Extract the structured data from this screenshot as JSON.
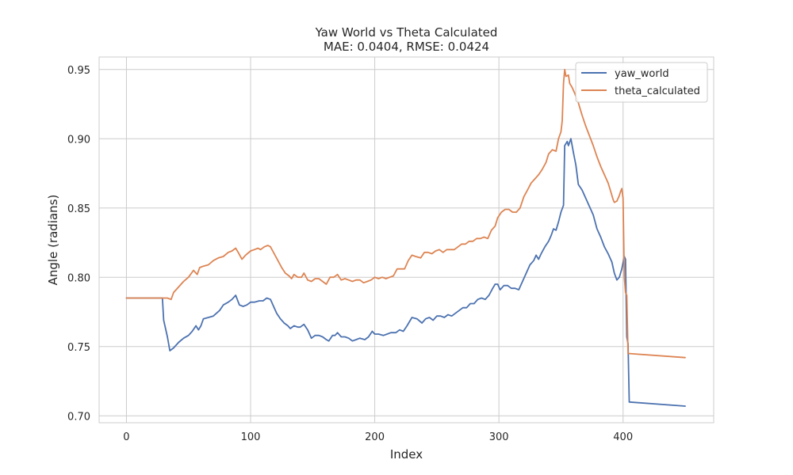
{
  "chart_data": {
    "type": "line",
    "title": "Yaw World vs Theta Calculated",
    "subtitle": "MAE: 0.0404, RMSE: 0.0424",
    "xlabel": "Index",
    "ylabel": "Angle (radians)",
    "xlim": [
      -22,
      473
    ],
    "ylim": [
      0.695,
      0.959
    ],
    "xticks": [
      0,
      100,
      200,
      300,
      400
    ],
    "yticks": [
      0.7,
      0.75,
      0.8,
      0.85,
      0.9,
      0.95
    ],
    "xtick_labels": [
      "0",
      "100",
      "200",
      "300",
      "400"
    ],
    "ytick_labels": [
      "0.70",
      "0.75",
      "0.80",
      "0.85",
      "0.90",
      "0.95"
    ],
    "grid": true,
    "legend_position": "top-right",
    "series": [
      {
        "name": "yaw_world",
        "color": "#4c72b0",
        "points": [
          [
            0,
            0.785
          ],
          [
            10,
            0.785
          ],
          [
            20,
            0.785
          ],
          [
            29,
            0.785
          ],
          [
            30,
            0.769
          ],
          [
            33,
            0.757
          ],
          [
            35,
            0.747
          ],
          [
            38,
            0.749
          ],
          [
            42,
            0.753
          ],
          [
            46,
            0.756
          ],
          [
            50,
            0.758
          ],
          [
            53,
            0.761
          ],
          [
            56,
            0.765
          ],
          [
            58,
            0.762
          ],
          [
            60,
            0.765
          ],
          [
            62,
            0.77
          ],
          [
            66,
            0.771
          ],
          [
            70,
            0.772
          ],
          [
            75,
            0.776
          ],
          [
            78,
            0.78
          ],
          [
            82,
            0.782
          ],
          [
            85,
            0.784
          ],
          [
            88,
            0.787
          ],
          [
            91,
            0.78
          ],
          [
            94,
            0.779
          ],
          [
            97,
            0.78
          ],
          [
            100,
            0.782
          ],
          [
            103,
            0.782
          ],
          [
            107,
            0.783
          ],
          [
            110,
            0.783
          ],
          [
            113,
            0.785
          ],
          [
            116,
            0.784
          ],
          [
            118,
            0.78
          ],
          [
            121,
            0.774
          ],
          [
            124,
            0.77
          ],
          [
            127,
            0.767
          ],
          [
            130,
            0.765
          ],
          [
            132,
            0.763
          ],
          [
            135,
            0.765
          ],
          [
            138,
            0.764
          ],
          [
            140,
            0.764
          ],
          [
            143,
            0.766
          ],
          [
            146,
            0.762
          ],
          [
            149,
            0.756
          ],
          [
            152,
            0.758
          ],
          [
            155,
            0.758
          ],
          [
            158,
            0.757
          ],
          [
            161,
            0.755
          ],
          [
            163,
            0.754
          ],
          [
            166,
            0.758
          ],
          [
            168,
            0.758
          ],
          [
            170,
            0.76
          ],
          [
            173,
            0.757
          ],
          [
            176,
            0.757
          ],
          [
            179,
            0.756
          ],
          [
            182,
            0.754
          ],
          [
            185,
            0.755
          ],
          [
            188,
            0.756
          ],
          [
            192,
            0.755
          ],
          [
            195,
            0.757
          ],
          [
            198,
            0.761
          ],
          [
            200,
            0.759
          ],
          [
            203,
            0.759
          ],
          [
            207,
            0.758
          ],
          [
            210,
            0.759
          ],
          [
            213,
            0.76
          ],
          [
            217,
            0.76
          ],
          [
            220,
            0.762
          ],
          [
            223,
            0.761
          ],
          [
            226,
            0.765
          ],
          [
            230,
            0.771
          ],
          [
            234,
            0.77
          ],
          [
            238,
            0.767
          ],
          [
            241,
            0.77
          ],
          [
            244,
            0.771
          ],
          [
            247,
            0.769
          ],
          [
            250,
            0.772
          ],
          [
            253,
            0.772
          ],
          [
            256,
            0.771
          ],
          [
            259,
            0.773
          ],
          [
            262,
            0.772
          ],
          [
            265,
            0.774
          ],
          [
            268,
            0.776
          ],
          [
            271,
            0.778
          ],
          [
            274,
            0.778
          ],
          [
            277,
            0.781
          ],
          [
            280,
            0.781
          ],
          [
            283,
            0.784
          ],
          [
            286,
            0.785
          ],
          [
            289,
            0.784
          ],
          [
            292,
            0.787
          ],
          [
            295,
            0.792
          ],
          [
            297,
            0.795
          ],
          [
            299,
            0.795
          ],
          [
            301,
            0.791
          ],
          [
            304,
            0.794
          ],
          [
            307,
            0.794
          ],
          [
            310,
            0.792
          ],
          [
            313,
            0.792
          ],
          [
            316,
            0.791
          ],
          [
            319,
            0.797
          ],
          [
            322,
            0.803
          ],
          [
            325,
            0.809
          ],
          [
            328,
            0.812
          ],
          [
            330,
            0.816
          ],
          [
            332,
            0.813
          ],
          [
            334,
            0.817
          ],
          [
            337,
            0.822
          ],
          [
            340,
            0.826
          ],
          [
            342,
            0.83
          ],
          [
            344,
            0.835
          ],
          [
            346,
            0.834
          ],
          [
            348,
            0.84
          ],
          [
            350,
            0.847
          ],
          [
            352,
            0.852
          ],
          [
            353,
            0.895
          ],
          [
            355,
            0.898
          ],
          [
            356,
            0.895
          ],
          [
            358,
            0.9
          ],
          [
            360,
            0.89
          ],
          [
            362,
            0.881
          ],
          [
            364,
            0.867
          ],
          [
            367,
            0.863
          ],
          [
            370,
            0.857
          ],
          [
            373,
            0.851
          ],
          [
            376,
            0.845
          ],
          [
            379,
            0.835
          ],
          [
            382,
            0.829
          ],
          [
            385,
            0.822
          ],
          [
            388,
            0.817
          ],
          [
            391,
            0.811
          ],
          [
            393,
            0.803
          ],
          [
            395,
            0.798
          ],
          [
            397,
            0.8
          ],
          [
            399,
            0.806
          ],
          [
            401,
            0.815
          ],
          [
            402,
            0.813
          ],
          [
            403,
            0.757
          ],
          [
            404,
            0.752
          ],
          [
            405,
            0.71
          ],
          [
            450,
            0.707
          ]
        ]
      },
      {
        "name": "theta_calculated",
        "color": "#dd8452",
        "points": [
          [
            0,
            0.785
          ],
          [
            10,
            0.785
          ],
          [
            20,
            0.785
          ],
          [
            30,
            0.785
          ],
          [
            33,
            0.785
          ],
          [
            36,
            0.784
          ],
          [
            38,
            0.789
          ],
          [
            42,
            0.793
          ],
          [
            46,
            0.797
          ],
          [
            50,
            0.8
          ],
          [
            54,
            0.805
          ],
          [
            57,
            0.802
          ],
          [
            59,
            0.807
          ],
          [
            62,
            0.808
          ],
          [
            66,
            0.809
          ],
          [
            70,
            0.812
          ],
          [
            74,
            0.814
          ],
          [
            78,
            0.815
          ],
          [
            82,
            0.818
          ],
          [
            85,
            0.819
          ],
          [
            88,
            0.821
          ],
          [
            90,
            0.818
          ],
          [
            93,
            0.813
          ],
          [
            96,
            0.816
          ],
          [
            100,
            0.819
          ],
          [
            103,
            0.82
          ],
          [
            106,
            0.821
          ],
          [
            108,
            0.82
          ],
          [
            111,
            0.822
          ],
          [
            114,
            0.823
          ],
          [
            116,
            0.822
          ],
          [
            119,
            0.817
          ],
          [
            122,
            0.812
          ],
          [
            125,
            0.807
          ],
          [
            128,
            0.803
          ],
          [
            131,
            0.801
          ],
          [
            133,
            0.799
          ],
          [
            135,
            0.802
          ],
          [
            138,
            0.8
          ],
          [
            141,
            0.8
          ],
          [
            143,
            0.803
          ],
          [
            146,
            0.798
          ],
          [
            149,
            0.797
          ],
          [
            152,
            0.799
          ],
          [
            155,
            0.799
          ],
          [
            158,
            0.797
          ],
          [
            161,
            0.795
          ],
          [
            164,
            0.8
          ],
          [
            167,
            0.8
          ],
          [
            170,
            0.802
          ],
          [
            173,
            0.798
          ],
          [
            176,
            0.799
          ],
          [
            179,
            0.798
          ],
          [
            182,
            0.797
          ],
          [
            185,
            0.798
          ],
          [
            188,
            0.798
          ],
          [
            191,
            0.796
          ],
          [
            194,
            0.797
          ],
          [
            197,
            0.798
          ],
          [
            200,
            0.8
          ],
          [
            203,
            0.799
          ],
          [
            206,
            0.8
          ],
          [
            209,
            0.799
          ],
          [
            212,
            0.8
          ],
          [
            215,
            0.801
          ],
          [
            218,
            0.806
          ],
          [
            221,
            0.806
          ],
          [
            224,
            0.806
          ],
          [
            227,
            0.812
          ],
          [
            230,
            0.816
          ],
          [
            233,
            0.815
          ],
          [
            237,
            0.814
          ],
          [
            240,
            0.818
          ],
          [
            243,
            0.818
          ],
          [
            246,
            0.817
          ],
          [
            249,
            0.819
          ],
          [
            252,
            0.82
          ],
          [
            255,
            0.818
          ],
          [
            258,
            0.82
          ],
          [
            261,
            0.82
          ],
          [
            264,
            0.82
          ],
          [
            267,
            0.822
          ],
          [
            270,
            0.824
          ],
          [
            273,
            0.824
          ],
          [
            276,
            0.826
          ],
          [
            279,
            0.826
          ],
          [
            282,
            0.828
          ],
          [
            285,
            0.828
          ],
          [
            288,
            0.829
          ],
          [
            291,
            0.828
          ],
          [
            294,
            0.834
          ],
          [
            297,
            0.837
          ],
          [
            299,
            0.843
          ],
          [
            302,
            0.847
          ],
          [
            305,
            0.849
          ],
          [
            308,
            0.849
          ],
          [
            311,
            0.847
          ],
          [
            314,
            0.847
          ],
          [
            317,
            0.85
          ],
          [
            320,
            0.858
          ],
          [
            323,
            0.863
          ],
          [
            326,
            0.868
          ],
          [
            329,
            0.871
          ],
          [
            332,
            0.874
          ],
          [
            335,
            0.878
          ],
          [
            338,
            0.883
          ],
          [
            340,
            0.889
          ],
          [
            343,
            0.892
          ],
          [
            346,
            0.891
          ],
          [
            348,
            0.9
          ],
          [
            350,
            0.905
          ],
          [
            351,
            0.913
          ],
          [
            352,
            0.94
          ],
          [
            353,
            0.95
          ],
          [
            354,
            0.945
          ],
          [
            356,
            0.946
          ],
          [
            357,
            0.94
          ],
          [
            359,
            0.937
          ],
          [
            361,
            0.933
          ],
          [
            364,
            0.926
          ],
          [
            367,
            0.917
          ],
          [
            370,
            0.909
          ],
          [
            373,
            0.902
          ],
          [
            376,
            0.895
          ],
          [
            379,
            0.887
          ],
          [
            382,
            0.88
          ],
          [
            385,
            0.874
          ],
          [
            388,
            0.868
          ],
          [
            390,
            0.862
          ],
          [
            392,
            0.856
          ],
          [
            393,
            0.854
          ],
          [
            395,
            0.855
          ],
          [
            397,
            0.859
          ],
          [
            398,
            0.862
          ],
          [
            399,
            0.864
          ],
          [
            400,
            0.857
          ],
          [
            401,
            0.8
          ],
          [
            402,
            0.789
          ],
          [
            403,
            0.787
          ],
          [
            404,
            0.745
          ],
          [
            450,
            0.742
          ]
        ]
      }
    ]
  }
}
